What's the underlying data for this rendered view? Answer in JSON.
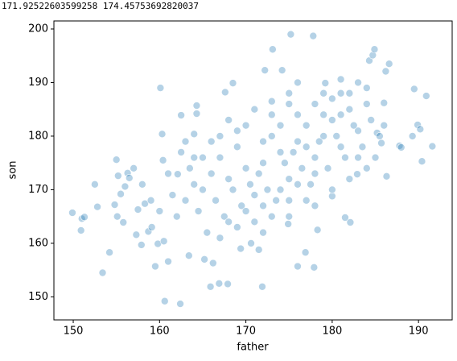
{
  "printed_output": "171.92522603599258 174.45753692820037",
  "chart_data": {
    "type": "scatter",
    "xlabel": "father",
    "ylabel": "son",
    "color": "#1f77b4",
    "xlim": [
      147.76,
      193.9
    ],
    "ylim": [
      145.7,
      201.5
    ],
    "xticks": [
      150,
      160,
      170,
      180,
      190
    ],
    "yticks": [
      150,
      160,
      170,
      180,
      190,
      200
    ],
    "x": [
      149.9,
      150.9,
      151,
      151.3,
      152.5,
      152.8,
      153.4,
      154.2,
      154.8,
      155,
      155.2,
      155.5,
      155.1,
      155.8,
      156,
      156.3,
      156.5,
      157.3,
      157.5,
      157.9,
      158.3,
      158.7,
      159.1,
      159.5,
      159.8,
      160.1,
      160.6,
      160.5,
      160.4,
      161,
      162.1,
      162.4,
      163.4,
      164,
      164.3,
      165.2,
      165.9,
      166.2,
      166.9,
      167.6,
      167.9,
      169.4,
      170.6,
      171.5,
      171.9,
      172.2,
      173.1,
      174.2,
      174.9,
      175.2,
      176,
      176.9,
      177.8,
      177.9,
      178.3,
      179.2,
      180,
      181,
      181.5,
      182.1,
      182.9,
      184.3,
      184.7,
      184.9,
      185.2,
      186,
      186.2,
      186.3,
      186.6,
      187.8,
      188,
      189.3,
      189.5,
      189.9,
      190.2,
      190.4,
      190.9,
      191.6,
      168.5,
      164.3,
      173,
      185.7,
      160.3,
      162.5,
      165,
      166,
      167,
      168,
      169,
      170,
      171,
      172,
      173,
      174,
      175,
      176,
      177,
      178,
      179,
      180,
      181,
      182,
      183,
      184,
      166.5,
      167.5,
      168.5,
      169.5,
      170.5,
      171.5,
      172.5,
      173.5,
      174.5,
      175.5,
      176.5,
      177.5,
      178.5,
      179.5,
      180.5,
      181.5,
      182.5,
      183.5,
      184.5,
      185.5,
      162,
      163,
      164,
      163.5,
      162.5,
      161.5,
      164.5,
      165.5,
      167,
      168,
      169,
      170,
      171,
      172,
      173,
      174,
      175,
      176,
      177,
      178,
      170,
      171,
      172,
      173,
      174,
      175,
      176,
      177,
      178,
      179,
      180,
      181,
      182,
      183,
      184,
      185,
      186,
      167,
      168,
      169,
      165,
      166,
      164,
      163,
      161,
      160,
      159,
      158,
      157,
      172,
      175,
      178,
      180,
      182,
      179,
      181,
      183,
      184,
      176,
      175
    ],
    "values": [
      165.7,
      162.4,
      164.6,
      164.9,
      171,
      166.8,
      154.5,
      158.3,
      167.2,
      175.6,
      172.6,
      169.2,
      165,
      163.9,
      170.6,
      173.1,
      172.2,
      161.6,
      166.3,
      159.7,
      167.4,
      162.2,
      163,
      155.7,
      159.9,
      189,
      149.2,
      160.4,
      175.5,
      156.6,
      172.9,
      148.7,
      157.7,
      180.4,
      184.2,
      157,
      151.9,
      156.3,
      152.5,
      188.2,
      152.4,
      159,
      160,
      158.8,
      151.9,
      192.3,
      196.2,
      192.3,
      163.6,
      199,
      155.7,
      158.3,
      198.7,
      155.5,
      162.5,
      189.9,
      168.8,
      190.6,
      164.8,
      163.9,
      172.9,
      194.1,
      195.1,
      196.2,
      180.6,
      186.2,
      192.1,
      172.5,
      193.5,
      178.2,
      177.9,
      180,
      188.8,
      182.1,
      181.3,
      175.3,
      187.5,
      178.1,
      189.9,
      185.7,
      186.5,
      178.7,
      180.4,
      183.9,
      170,
      173,
      176,
      172,
      178,
      174,
      169,
      175,
      180,
      177,
      172,
      179,
      182,
      176,
      180,
      183,
      178,
      185,
      181,
      186,
      168,
      165,
      170,
      167,
      171,
      173,
      170,
      168,
      175,
      177,
      174,
      171,
      179,
      174,
      180,
      176,
      182,
      178,
      183,
      180,
      165,
      168,
      171,
      174,
      177,
      169,
      166,
      162,
      161,
      164,
      163,
      166,
      164,
      167,
      165,
      170,
      168,
      171,
      168,
      173,
      182,
      185,
      179,
      184,
      182,
      186,
      184,
      178,
      186,
      184,
      187,
      184,
      188,
      176,
      174,
      176,
      182,
      180,
      183,
      181,
      176,
      179,
      176,
      179,
      173,
      166,
      168,
      171,
      174,
      162,
      165,
      167,
      170,
      172,
      188,
      188,
      190,
      189,
      190,
      188
    ]
  }
}
